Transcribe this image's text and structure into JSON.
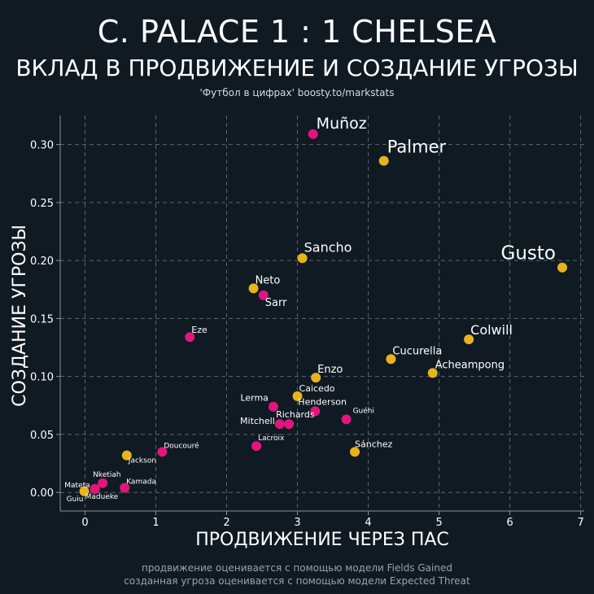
{
  "header": {
    "title": "C. PALACE 1 : 1 CHELSEA",
    "subtitle": "ВКЛАД В ПРОДВИЖЕНИЕ И СОЗДАНИЕ УГРОЗЫ",
    "credit": "'Футбол в цифрах' boosty.to/markstats"
  },
  "footer": {
    "line1": "продвижение оценивается с помощью модели Fields Gained",
    "line2": "созданная угроза оценивается с помощью модели Expected Threat"
  },
  "colors": {
    "background": "#101a22",
    "chelsea": "#e8b31d",
    "palace": "#e0157f",
    "grid": "#5a6670"
  },
  "chart_data": {
    "type": "scatter",
    "title": "C. PALACE 1 : 1 CHELSEA",
    "xlabel": "ПРОДВИЖЕНИЕ ЧЕРЕЗ ПАС",
    "ylabel": "СОЗДАНИЕ УГРОЗЫ",
    "xlim": [
      -0.35,
      7.05
    ],
    "ylim": [
      -0.016,
      0.325
    ],
    "xticks": [
      0,
      1,
      2,
      3,
      4,
      5,
      6,
      7
    ],
    "yticks": [
      0.0,
      0.05,
      0.1,
      0.15,
      0.2,
      0.25,
      0.3
    ],
    "ytick_labels": [
      "0.00",
      "0.05",
      "0.10",
      "0.15",
      "0.20",
      "0.25",
      "0.30"
    ],
    "grid": true,
    "series": [
      {
        "name": "Chelsea",
        "color": "#e8b31d",
        "points": [
          {
            "name": "Palmer",
            "x": 4.22,
            "y": 0.286,
            "size": "xl"
          },
          {
            "name": "Gusto",
            "x": 6.74,
            "y": 0.194,
            "size": "xxl",
            "anchor": "left"
          },
          {
            "name": "Sancho",
            "x": 3.07,
            "y": 0.202,
            "size": "md"
          },
          {
            "name": "Neto",
            "x": 2.38,
            "y": 0.176,
            "size": "sm"
          },
          {
            "name": "Colwill",
            "x": 5.42,
            "y": 0.132,
            "size": "md"
          },
          {
            "name": "Cucurella",
            "x": 4.32,
            "y": 0.115,
            "size": "sm"
          },
          {
            "name": "Acheampong",
            "x": 4.91,
            "y": 0.103,
            "size": "sm"
          },
          {
            "name": "Enzo",
            "x": 3.26,
            "y": 0.099,
            "size": "sm"
          },
          {
            "name": "Caicedo",
            "x": 3.0,
            "y": 0.083,
            "size": "xs"
          },
          {
            "name": "Sánchez",
            "x": 3.81,
            "y": 0.035,
            "size": "xs"
          },
          {
            "name": "Jackson",
            "x": 0.59,
            "y": 0.032,
            "size": "xxs"
          },
          {
            "name": "Guiu",
            "x": -0.01,
            "y": 0.001,
            "size": "xxs"
          },
          {
            "name": "Madueke",
            "x": 0.14,
            "y": 0.003,
            "size": "xxs"
          }
        ]
      },
      {
        "name": "Crystal Palace",
        "color": "#e0157f",
        "points": [
          {
            "name": "Muñoz",
            "x": 3.22,
            "y": 0.309,
            "size": "lg"
          },
          {
            "name": "Sarr",
            "x": 2.52,
            "y": 0.17,
            "size": "sm"
          },
          {
            "name": "Eze",
            "x": 1.48,
            "y": 0.134,
            "size": "xs"
          },
          {
            "name": "Lerma",
            "x": 2.66,
            "y": 0.074,
            "size": "xs",
            "anchor": "left"
          },
          {
            "name": "Richards",
            "x": 2.88,
            "y": 0.059,
            "size": "xs"
          },
          {
            "name": "Mitchell",
            "x": 2.75,
            "y": 0.059,
            "size": "xs",
            "anchor": "left"
          },
          {
            "name": "Henderson",
            "x": 3.25,
            "y": 0.07,
            "size": "xs"
          },
          {
            "name": "Guéhi",
            "x": 3.69,
            "y": 0.063,
            "size": "xxs"
          },
          {
            "name": "Lacroix",
            "x": 2.42,
            "y": 0.04,
            "size": "xxs"
          },
          {
            "name": "Doucouré",
            "x": 1.09,
            "y": 0.035,
            "size": "xxs"
          },
          {
            "name": "Nketiah",
            "x": 0.25,
            "y": 0.008,
            "size": "xxs"
          },
          {
            "name": "Kamada",
            "x": 0.56,
            "y": 0.004,
            "size": "xxs"
          },
          {
            "name": "Mateta",
            "x": 0.14,
            "y": 0.003,
            "size": "xxs",
            "anchor": "left"
          }
        ]
      }
    ]
  }
}
